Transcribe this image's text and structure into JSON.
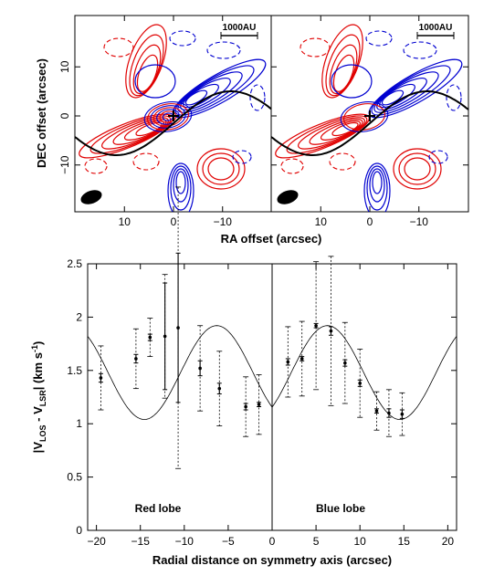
{
  "chart_data": [
    {
      "type": "contour",
      "panels": [
        "left",
        "right"
      ],
      "ylabel": "DEC offset (arcsec)",
      "xlabel": "RA offset (arcsec)",
      "xticks": [
        -10,
        0,
        10
      ],
      "yticks": [
        -10,
        0,
        10
      ],
      "xlim": [
        20,
        -20
      ],
      "ylim": [
        -20,
        20
      ],
      "scalebar_label": "1000AU",
      "series": [
        {
          "color": "#e00000"
        },
        {
          "color": "#0000d0"
        }
      ],
      "curve_color": "#000000"
    },
    {
      "type": "scatter",
      "xlabel": "Radial distance on symmetry axis (arcsec)",
      "ylabel_main": "|V",
      "ylabel_sub1": "LOS",
      "ylabel_mid": " - V",
      "ylabel_sub2": "LSR",
      "ylabel_tail": "| (km s",
      "ylabel_sup": "-1",
      "ylabel_close": ")",
      "xlim": [
        -21,
        21
      ],
      "ylim": [
        0,
        2.5
      ],
      "xticks": [
        -20,
        -15,
        -10,
        -5,
        0,
        5,
        10,
        15,
        20
      ],
      "yticks": [
        0,
        0.5,
        1,
        1.5,
        2,
        2.5
      ],
      "annotations": [
        "Red lobe",
        "Blue lobe"
      ],
      "points": [
        {
          "x": -19.5,
          "y": 1.43,
          "err_in": 0.04,
          "err_out": 0.3
        },
        {
          "x": -15.5,
          "y": 1.61,
          "err_in": 0.04,
          "err_out": 0.28
        },
        {
          "x": -13.9,
          "y": 1.81,
          "err_in": 0.03,
          "err_out": 0.18
        },
        {
          "x": -12.2,
          "y": 1.82,
          "err_in": 0.5,
          "err_out": 0.58
        },
        {
          "x": -10.7,
          "y": 1.9,
          "err_in": 0.7,
          "err_out": 1.32
        },
        {
          "x": -8.2,
          "y": 1.52,
          "err_in": 0.07,
          "err_out": 0.4
        },
        {
          "x": -6.0,
          "y": 1.33,
          "err_in": 0.05,
          "err_out": 0.35
        },
        {
          "x": -3.0,
          "y": 1.16,
          "err_in": 0.03,
          "err_out": 0.28
        },
        {
          "x": -1.5,
          "y": 1.18,
          "err_in": 0.02,
          "err_out": 0.28
        },
        {
          "x": 1.8,
          "y": 1.58,
          "err_in": 0.03,
          "err_out": 0.33
        },
        {
          "x": 3.4,
          "y": 1.61,
          "err_in": 0.02,
          "err_out": 0.35
        },
        {
          "x": 5.0,
          "y": 1.92,
          "err_in": 0.02,
          "err_out": 0.6
        },
        {
          "x": 6.7,
          "y": 1.87,
          "err_in": 0.04,
          "err_out": 0.7
        },
        {
          "x": 8.3,
          "y": 1.57,
          "err_in": 0.03,
          "err_out": 0.38
        },
        {
          "x": 10.0,
          "y": 1.38,
          "err_in": 0.03,
          "err_out": 0.32
        },
        {
          "x": 11.9,
          "y": 1.12,
          "err_in": 0.02,
          "err_out": 0.18
        },
        {
          "x": 13.3,
          "y": 1.1,
          "err_in": 0.04,
          "err_out": 0.22
        },
        {
          "x": 14.8,
          "y": 1.09,
          "err_in": 0.04,
          "err_out": 0.2
        }
      ],
      "model_curve": {
        "period": 16.5,
        "amplitude": 0.44,
        "offset": 1.48,
        "phase_x": 6.3
      }
    }
  ]
}
